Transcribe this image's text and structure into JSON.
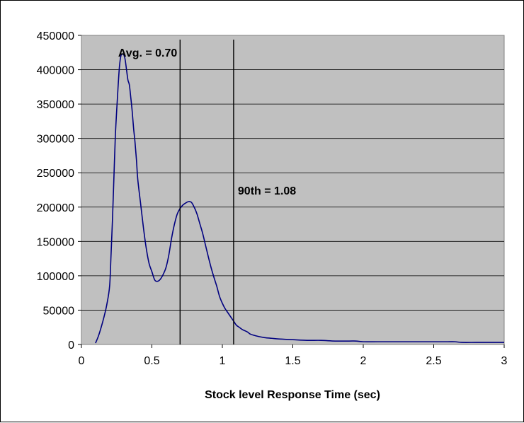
{
  "chart_data": {
    "type": "line",
    "title": "",
    "xlabel": "Stock level Response Time (sec)",
    "ylabel": "",
    "xlim": [
      0,
      3
    ],
    "ylim": [
      0,
      450000
    ],
    "x_ticks": [
      "0",
      "0.5",
      "1",
      "1.5",
      "2",
      "2.5",
      "3"
    ],
    "y_ticks": [
      "0",
      "50000",
      "100000",
      "150000",
      "200000",
      "250000",
      "300000",
      "350000",
      "400000",
      "450000"
    ],
    "grid": true,
    "legend": "none",
    "plot_background": "#c0c0c0",
    "line_color": "#000080",
    "series": [
      {
        "x": [
          0.1,
          0.12,
          0.14,
          0.16,
          0.18,
          0.2,
          0.21,
          0.22,
          0.23,
          0.24,
          0.25,
          0.26,
          0.27,
          0.28,
          0.29,
          0.3,
          0.31,
          0.32,
          0.33,
          0.34,
          0.35,
          0.36,
          0.37,
          0.38,
          0.39,
          0.4,
          0.42,
          0.44,
          0.46,
          0.48,
          0.5,
          0.52,
          0.54,
          0.56,
          0.58,
          0.6,
          0.62,
          0.64,
          0.66,
          0.68,
          0.7,
          0.72,
          0.74,
          0.76,
          0.78,
          0.8,
          0.82,
          0.84,
          0.86,
          0.88,
          0.9,
          0.92,
          0.94,
          0.96,
          0.98,
          1.0,
          1.02,
          1.04,
          1.06,
          1.08,
          1.1,
          1.12,
          1.14,
          1.16,
          1.18,
          1.2,
          1.25,
          1.3,
          1.35,
          1.4,
          1.5,
          1.6,
          1.7,
          1.8,
          1.9,
          1.95,
          2.0,
          2.1,
          2.2,
          2.3,
          2.4,
          2.5,
          2.6,
          2.65,
          2.7,
          2.8,
          2.9,
          3.0
        ],
        "y": [
          2000,
          12000,
          25000,
          40000,
          58000,
          85000,
          130000,
          180000,
          240000,
          300000,
          340000,
          375000,
          405000,
          420000,
          423000,
          422000,
          415000,
          400000,
          385000,
          378000,
          360000,
          340000,
          315000,
          295000,
          270000,
          240000,
          205000,
          170000,
          140000,
          118000,
          106000,
          94000,
          92000,
          95000,
          102000,
          112000,
          130000,
          155000,
          175000,
          190000,
          198000,
          203000,
          206000,
          208000,
          207000,
          200000,
          190000,
          176000,
          162000,
          145000,
          128000,
          112000,
          98000,
          85000,
          70000,
          60000,
          52000,
          46000,
          40000,
          34000,
          28000,
          25000,
          22000,
          20000,
          18000,
          15000,
          12000,
          10000,
          9000,
          8000,
          7000,
          6000,
          6000,
          5000,
          5000,
          5000,
          4000,
          4000,
          4000,
          4000,
          4000,
          4000,
          4000,
          4000,
          3000,
          3000,
          3000,
          3000
        ]
      }
    ],
    "reference_lines": [
      {
        "x": 0.7,
        "label": "Avg. = 0.70"
      },
      {
        "x": 1.08,
        "label": "90th = 1.08"
      }
    ]
  }
}
